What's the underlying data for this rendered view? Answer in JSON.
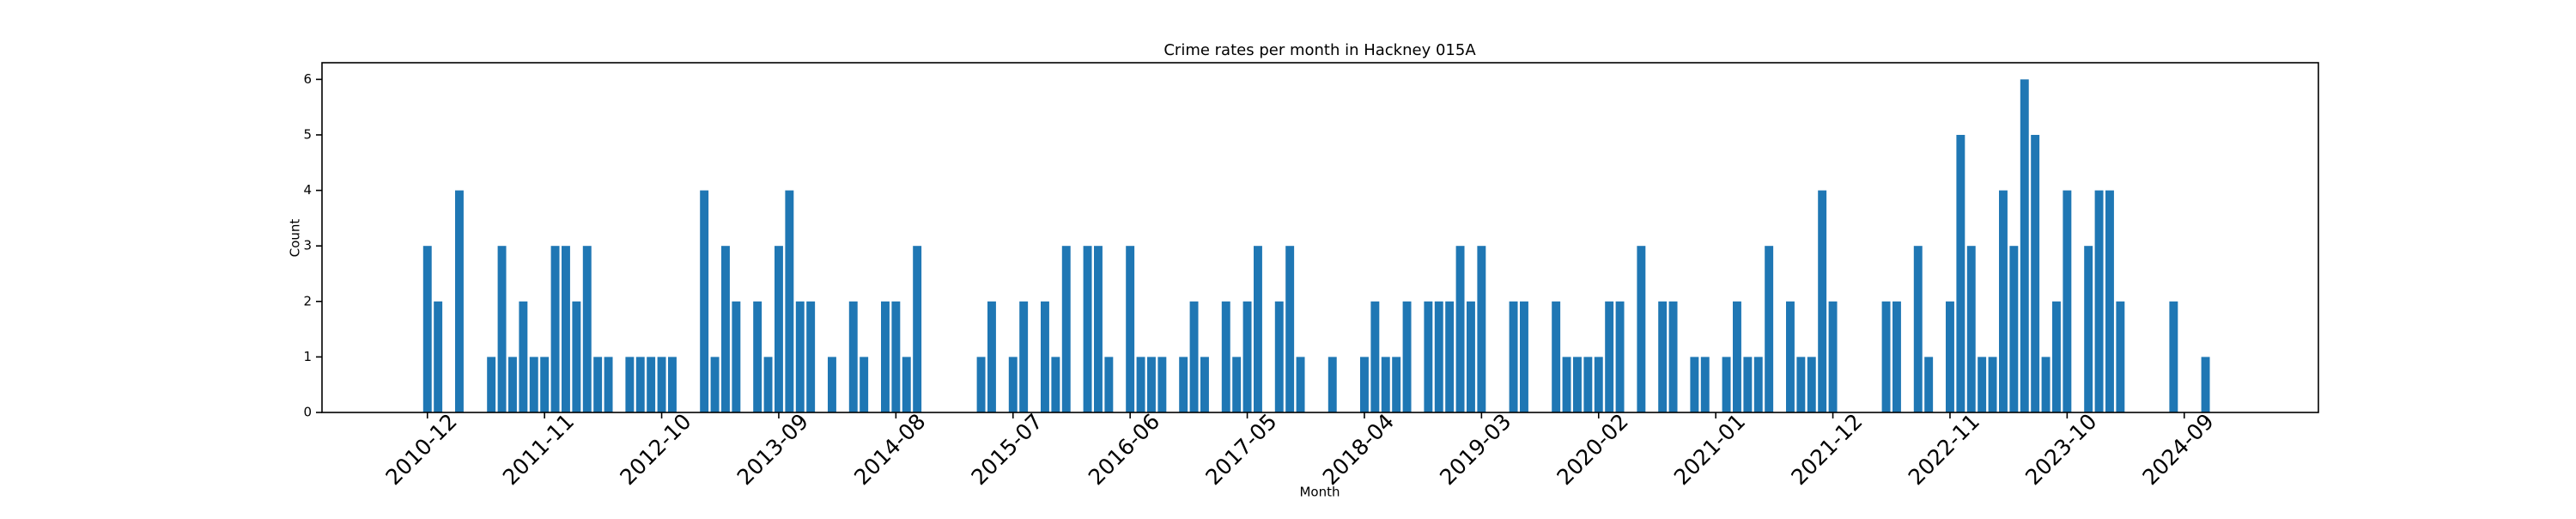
{
  "chart_data": {
    "type": "bar",
    "title": "Crime rates per month in Hackney 015A",
    "xlabel": "Month",
    "ylabel": "Count",
    "color": "#1f77b4",
    "grid": false,
    "ylim": [
      0,
      6.3
    ],
    "yticks": [
      0,
      1,
      2,
      3,
      4,
      5,
      6
    ],
    "categories": [
      "2010-12",
      null,
      null,
      null,
      null,
      null,
      null,
      null,
      null,
      null,
      null,
      "2011-11",
      null,
      null,
      null,
      null,
      null,
      null,
      null,
      null,
      null,
      null,
      "2012-10",
      null,
      null,
      null,
      null,
      null,
      null,
      null,
      null,
      null,
      null,
      "2013-09",
      null,
      null,
      null,
      null,
      null,
      null,
      null,
      null,
      null,
      null,
      "2014-08",
      null,
      null,
      null,
      null,
      null,
      null,
      null,
      null,
      null,
      null,
      "2015-07",
      null,
      null,
      null,
      null,
      null,
      null,
      null,
      null,
      null,
      null,
      "2016-06",
      null,
      null,
      null,
      null,
      null,
      null,
      null,
      null,
      null,
      null,
      "2017-05",
      null,
      null,
      null,
      null,
      null,
      null,
      null,
      null,
      null,
      null,
      "2018-04",
      null,
      null,
      null,
      null,
      null,
      null,
      null,
      null,
      null,
      null,
      "2019-03",
      null,
      null,
      null,
      null,
      null,
      null,
      null,
      null,
      null,
      null,
      "2020-02",
      null,
      null,
      null,
      null,
      null,
      null,
      null,
      null,
      null,
      null,
      "2021-01",
      null,
      null,
      null,
      null,
      null,
      null,
      null,
      null,
      null,
      null,
      "2021-12",
      null,
      null,
      null,
      null,
      null,
      null,
      null,
      null,
      null,
      null,
      "2022-11",
      null,
      null,
      null,
      null,
      null,
      null,
      null,
      null,
      null,
      null,
      "2023-10",
      null,
      null,
      null,
      null,
      null,
      null,
      null,
      null,
      null,
      null,
      "2024-09",
      null,
      null
    ],
    "values": [
      3,
      2,
      0,
      4,
      0,
      0,
      1,
      3,
      1,
      2,
      1,
      1,
      3,
      3,
      2,
      3,
      1,
      1,
      0,
      1,
      1,
      1,
      1,
      1,
      0,
      0,
      4,
      1,
      3,
      2,
      0,
      2,
      1,
      3,
      4,
      2,
      2,
      0,
      1,
      0,
      2,
      1,
      0,
      2,
      2,
      1,
      3,
      0,
      0,
      0,
      0,
      0,
      1,
      2,
      0,
      1,
      2,
      0,
      2,
      1,
      3,
      0,
      3,
      3,
      1,
      0,
      3,
      1,
      1,
      1,
      0,
      1,
      2,
      1,
      0,
      2,
      1,
      2,
      3,
      0,
      2,
      3,
      1,
      0,
      0,
      1,
      0,
      0,
      1,
      2,
      1,
      1,
      2,
      0,
      2,
      2,
      2,
      3,
      2,
      3,
      0,
      0,
      2,
      2,
      0,
      0,
      2,
      1,
      1,
      1,
      1,
      2,
      2,
      0,
      3,
      0,
      2,
      2,
      0,
      1,
      1,
      0,
      1,
      2,
      1,
      1,
      3,
      0,
      2,
      1,
      1,
      4,
      2,
      0,
      0,
      0,
      0,
      2,
      2,
      0,
      3,
      1,
      0,
      2,
      5,
      3,
      1,
      1,
      4,
      3,
      6,
      5,
      1,
      2,
      4,
      0,
      3,
      4,
      4,
      2,
      0,
      0,
      0,
      0,
      2,
      0,
      0,
      1
    ]
  }
}
